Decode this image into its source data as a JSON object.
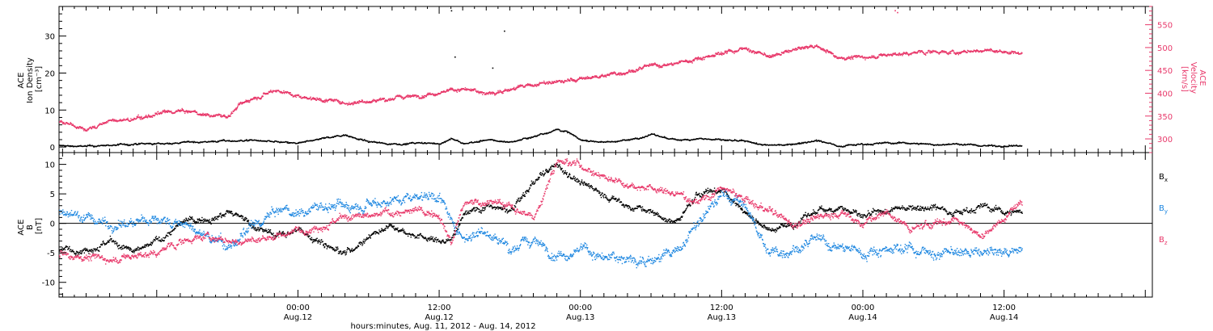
{
  "colors": {
    "black": "#000000",
    "pink": "#e8386a",
    "blue": "#1c86e0",
    "axis": "#000000"
  },
  "x_axis": {
    "ticks": [
      {
        "time": "00:00",
        "day": "Aug.12",
        "hours": 24
      },
      {
        "time": "12:00",
        "day": "Aug.12",
        "hours": 36
      },
      {
        "time": "00:00",
        "day": "Aug.13",
        "hours": 48
      },
      {
        "time": "12:00",
        "day": "Aug.13",
        "hours": 60
      },
      {
        "time": "00:00",
        "day": "Aug.14",
        "hours": 72
      },
      {
        "time": "12:00",
        "day": "Aug.14",
        "hours": 84
      }
    ],
    "label": "hours:minutes, Aug. 11, 2012 - Aug. 14, 2012",
    "range_hours": [
      3.7,
      96.6
    ]
  },
  "chart_data": [
    {
      "type": "scatter",
      "panel": "plasma",
      "x_units": "hours since Aug. 11, 2012 00:00",
      "xlim": [
        3.7,
        96.6
      ],
      "left_axis": {
        "label_lines": [
          "ACE",
          "Ion Density",
          "[cm⁻³]"
        ],
        "ylim": [
          -1.5,
          38
        ],
        "major_ticks": [
          0,
          10,
          20,
          30
        ],
        "tick_labels": [
          "0",
          "10",
          "20",
          "30"
        ]
      },
      "right_axis": {
        "label_lines": [
          "ACE",
          "Velocity",
          "[km/s]"
        ],
        "ylim": [
          270,
          590
        ],
        "major_ticks": [
          300,
          350,
          400,
          450,
          500,
          550
        ],
        "tick_labels": [
          "300",
          "350",
          "400",
          "450",
          "500",
          "550"
        ]
      },
      "series": [
        {
          "key": "density",
          "axis": "left",
          "color": "black",
          "noise": 0.35,
          "x": [
            3.7,
            6,
            9,
            12,
            15,
            18,
            20,
            22,
            24,
            26,
            28,
            30,
            32,
            34,
            36,
            37,
            38,
            40,
            42,
            44,
            46,
            47,
            48,
            50,
            52,
            54,
            56,
            58,
            60,
            62,
            64,
            66,
            68,
            70,
            72,
            74,
            76,
            78,
            80,
            82,
            84,
            85.5
          ],
          "y": [
            0.5,
            0.3,
            0.8,
            1,
            1.5,
            1.8,
            2,
            1.5,
            1,
            2.5,
            3.5,
            1.5,
            1,
            1.2,
            1,
            2.5,
            1,
            2,
            1.5,
            3,
            5,
            4,
            2,
            1.5,
            2,
            3.5,
            2,
            2.5,
            2,
            1.5,
            0.5,
            1,
            2,
            0.5,
            1,
            1.2,
            1.2,
            0.8,
            1,
            0.5,
            0.5,
            0.5
          ]
        },
        {
          "key": "velocity",
          "axis": "right",
          "color": "pink",
          "noise": 6,
          "x": [
            3.7,
            6,
            8,
            10,
            12,
            14,
            16,
            18,
            19,
            20,
            22,
            24,
            26,
            28,
            30,
            32,
            34,
            36,
            38,
            40,
            42,
            44,
            46,
            48,
            50,
            52,
            54,
            56,
            58,
            60,
            62,
            64,
            66,
            68,
            70,
            72,
            74,
            76,
            78,
            80,
            82,
            84,
            85.5
          ],
          "y": [
            338,
            322,
            340,
            343,
            355,
            362,
            355,
            350,
            375,
            390,
            410,
            395,
            388,
            380,
            385,
            390,
            395,
            405,
            410,
            400,
            410,
            420,
            425,
            432,
            440,
            450,
            460,
            465,
            478,
            490,
            500,
            480,
            495,
            505,
            480,
            480,
            485,
            488,
            493,
            490,
            495,
            492,
            490
          ]
        }
      ],
      "outliers": [
        {
          "x": 37,
          "y": 37,
          "axis": "left",
          "color": "black"
        },
        {
          "x": 41.5,
          "y": 31.5,
          "axis": "left",
          "color": "black"
        },
        {
          "x": 37.3,
          "y": 24.5,
          "axis": "left",
          "color": "black"
        },
        {
          "x": 40.5,
          "y": 21.5,
          "axis": "left",
          "color": "black"
        },
        {
          "x": 74.7,
          "y": 582,
          "axis": "right",
          "color": "pink"
        },
        {
          "x": 74.9,
          "y": 578,
          "axis": "right",
          "color": "pink"
        }
      ]
    },
    {
      "type": "scatter",
      "panel": "magnetic-field",
      "x_units": "hours since Aug. 11, 2012 00:00",
      "xlim": [
        3.7,
        96.6
      ],
      "left_axis": {
        "label_lines": [
          "ACE",
          "B",
          "[nT]"
        ],
        "ylim": [
          -12.5,
          12
        ],
        "major_ticks": [
          -10,
          -5,
          0,
          5,
          10
        ],
        "tick_labels": [
          "-10",
          "-5",
          "0",
          "5",
          "10"
        ]
      },
      "zero_line": 0,
      "legend": {
        "placement": "right",
        "items": [
          {
            "base": "B",
            "sub": "x",
            "color": "black"
          },
          {
            "base": "B",
            "sub": "y",
            "color": "blue"
          },
          {
            "base": "B",
            "sub": "z",
            "color": "pink"
          }
        ]
      },
      "series": [
        {
          "key": "bx",
          "name": "Bx",
          "color": "black",
          "noise": 0.8,
          "x": [
            3.7,
            6,
            8,
            10,
            12,
            14,
            16,
            18,
            20,
            22,
            24,
            26,
            28,
            30,
            32,
            34,
            36,
            37,
            38,
            40,
            42,
            44,
            46,
            48,
            50,
            52,
            54,
            56,
            58,
            60,
            62,
            64,
            66,
            68,
            70,
            72,
            74,
            76,
            78,
            80,
            82,
            84,
            85.5
          ],
          "y": [
            -4.5,
            -4,
            -3,
            -5,
            -3,
            0,
            1,
            2,
            0,
            -2,
            -1,
            -3,
            -5,
            -2,
            0,
            -2,
            -3,
            -3,
            2,
            3,
            2,
            7,
            10,
            7,
            5,
            3,
            2,
            0,
            5,
            6,
            2,
            -1,
            0,
            2,
            3,
            1,
            2,
            3,
            3,
            2,
            3,
            2,
            2
          ]
        },
        {
          "key": "by",
          "name": "By",
          "color": "blue",
          "noise": 1.3,
          "x": [
            3.7,
            6,
            8,
            10,
            12,
            14,
            16,
            18,
            20,
            22,
            24,
            26,
            28,
            30,
            32,
            34,
            36,
            37,
            38,
            40,
            42,
            44,
            46,
            48,
            50,
            52,
            54,
            56,
            58,
            60,
            62,
            64,
            66,
            68,
            70,
            72,
            74,
            76,
            78,
            80,
            82,
            84,
            85.5
          ],
          "y": [
            2.5,
            1,
            0,
            0,
            1,
            0,
            -2,
            -4,
            -1,
            2,
            2,
            3,
            3,
            4,
            4,
            5,
            5,
            0,
            -2,
            -1,
            -4,
            -3,
            -5,
            -4,
            -6,
            -6,
            -6,
            -5,
            0,
            5,
            3,
            -5,
            -4,
            -3,
            -4,
            -5,
            -4,
            -4,
            -5,
            -5,
            -5,
            -5,
            -4
          ]
        },
        {
          "key": "bz",
          "name": "Bz",
          "color": "pink",
          "noise": 0.9,
          "x": [
            3.7,
            6,
            8,
            10,
            12,
            14,
            16,
            18,
            20,
            22,
            24,
            26,
            28,
            30,
            32,
            34,
            36,
            37,
            38,
            40,
            42,
            44,
            46,
            48,
            50,
            52,
            54,
            56,
            58,
            60,
            62,
            64,
            66,
            68,
            70,
            72,
            74,
            76,
            78,
            80,
            82,
            84,
            85.5
          ],
          "y": [
            -5,
            -5.5,
            -6,
            -5.5,
            -5,
            -3,
            -2,
            -3,
            -3,
            -2,
            -1,
            0,
            1,
            1,
            2,
            2,
            2,
            -3,
            3,
            4,
            3,
            1,
            11,
            10,
            8,
            7,
            6,
            5,
            4,
            6,
            4,
            2,
            0,
            1,
            2,
            0,
            2,
            -1,
            0,
            1,
            -2,
            1,
            4
          ]
        }
      ]
    }
  ]
}
